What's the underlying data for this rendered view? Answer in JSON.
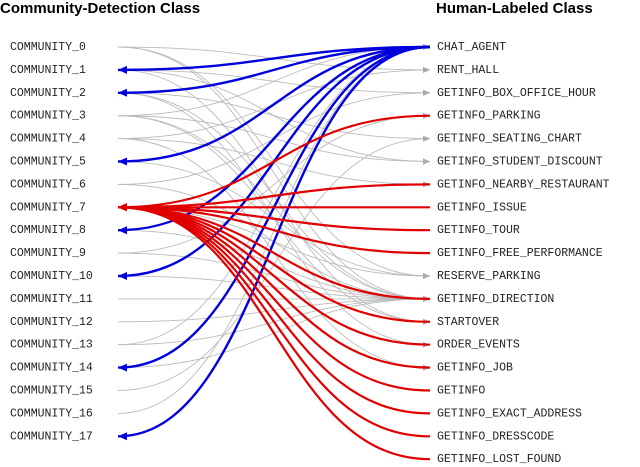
{
  "header": {
    "left_title": "Community-Detection Class",
    "right_title": "Human-Labeled Class"
  },
  "left_nodes": [
    "COMMUNITY_0",
    "COMMUNITY_1",
    "COMMUNITY_2",
    "COMMUNITY_3",
    "COMMUNITY_4",
    "COMMUNITY_5",
    "COMMUNITY_6",
    "COMMUNITY_7",
    "COMMUNITY_8",
    "COMMUNITY_9",
    "COMMUNITY_10",
    "COMMUNITY_11",
    "COMMUNITY_12",
    "COMMUNITY_13",
    "COMMUNITY_14",
    "COMMUNITY_15",
    "COMMUNITY_16",
    "COMMUNITY_17"
  ],
  "right_nodes": [
    "CHAT_AGENT",
    "RENT_HALL",
    "GETINFO_BOX_OFFICE_HOUR",
    "GETINFO_PARKING",
    "GETINFO_SEATING_CHART",
    "GETINFO_STUDENT_DISCOUNT",
    "GETINFO_NEARBY_RESTAURANT",
    "GETINFO_ISSUE",
    "GETINFO_TOUR",
    "GETINFO_FREE_PERFORMANCE",
    "RESERVE_PARKING",
    "GETINFO_DIRECTION",
    "STARTOVER",
    "ORDER_EVENTS",
    "GETINFO_JOB",
    "GETINFO",
    "GETINFO_EXACT_ADDRESS",
    "GETINFO_DRESSCODE",
    "GETINFO_LOST_FOUND"
  ]
}
